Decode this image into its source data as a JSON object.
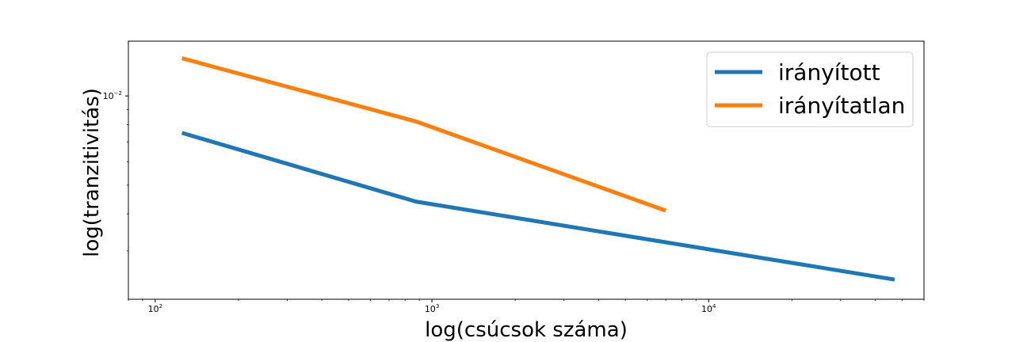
{
  "chart_data": {
    "type": "line",
    "xlabel": "log(csúcsok száma)",
    "ylabel": "log(tranzitivitás)",
    "xscale": "log",
    "yscale": "log",
    "xlim": [
      80,
      60000
    ],
    "ylim": [
      0.00206,
      0.0153
    ],
    "grid": false,
    "legend_position": "top-right",
    "x_ticks": [
      {
        "value": 100,
        "base": "10",
        "exp": "2"
      },
      {
        "value": 1000,
        "base": "10",
        "exp": "3"
      },
      {
        "value": 10000,
        "base": "10",
        "exp": "4"
      }
    ],
    "y_ticks": [
      {
        "value": 0.01,
        "base": "10",
        "exp": "−2"
      }
    ],
    "series": [
      {
        "name": "irányított",
        "color": "#1f77b4",
        "x": [
          125,
          875,
          47000
        ],
        "y": [
          0.0075,
          0.0044,
          0.0024
        ]
      },
      {
        "name": "irányítatlan",
        "color": "#ff7f0e",
        "x": [
          125,
          875,
          7000
        ],
        "y": [
          0.0134,
          0.0082,
          0.0041
        ]
      }
    ]
  }
}
